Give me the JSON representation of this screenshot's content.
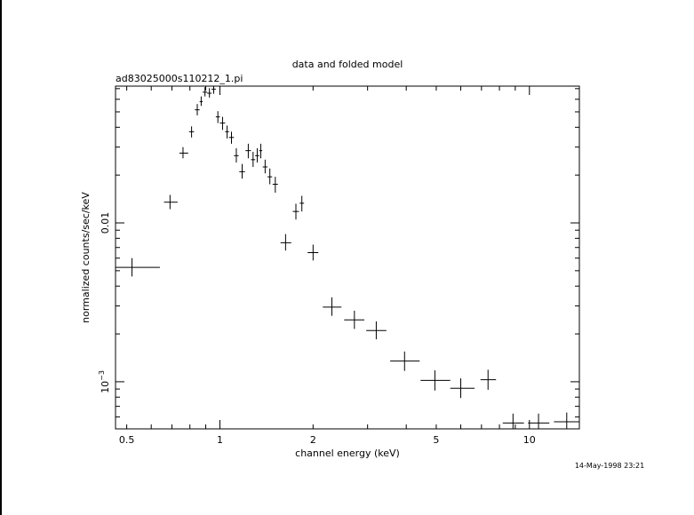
{
  "chart_data": {
    "type": "scatter",
    "title": "data and folded model",
    "subtitle": "ad83025000s110212_1.pi",
    "xlabel": "channel energy (keV)",
    "ylabel": "normalized counts/sec/keV",
    "timestamp": "14-May-1998 23:21",
    "x_scale": "log",
    "y_scale": "log",
    "xlim": [
      0.46,
      14.5
    ],
    "ylim": [
      0.000505,
      0.0726
    ],
    "grid": false,
    "x_ticks": [
      {
        "value": 0.5,
        "label": "0.5"
      },
      {
        "value": 1,
        "label": "1"
      },
      {
        "value": 2,
        "label": "2"
      },
      {
        "value": 5,
        "label": "5"
      },
      {
        "value": 10,
        "label": "10"
      }
    ],
    "y_ticks": [
      {
        "value": 0.01,
        "label": "0.01",
        "base": "",
        "exp": ""
      },
      {
        "value": 0.001,
        "label": "",
        "base": "10",
        "exp": "−3"
      }
    ],
    "points": [
      {
        "x": 0.52,
        "xerr": [
          0.46,
          0.64
        ],
        "y": 0.00525,
        "yerr": [
          0.0046,
          0.006
        ]
      },
      {
        "x": 0.69,
        "xerr": [
          0.66,
          0.73
        ],
        "y": 0.0135,
        "yerr": [
          0.0122,
          0.015
        ]
      },
      {
        "x": 0.76,
        "xerr": [
          0.74,
          0.79
        ],
        "y": 0.0275,
        "yerr": [
          0.0255,
          0.03
        ]
      },
      {
        "x": 0.81,
        "xerr": [
          0.795,
          0.825
        ],
        "y": 0.0375,
        "yerr": [
          0.0345,
          0.0405
        ]
      },
      {
        "x": 0.845,
        "xerr": [
          0.83,
          0.86
        ],
        "y": 0.0515,
        "yerr": [
          0.0475,
          0.056
        ]
      },
      {
        "x": 0.87,
        "xerr": [
          0.86,
          0.88
        ],
        "y": 0.058,
        "yerr": [
          0.0545,
          0.0625
        ]
      },
      {
        "x": 0.895,
        "xerr": [
          0.88,
          0.91
        ],
        "y": 0.0665,
        "yerr": [
          0.0625,
          0.0715
        ]
      },
      {
        "x": 0.925,
        "xerr": [
          0.91,
          0.94
        ],
        "y": 0.0655,
        "yerr": [
          0.0615,
          0.0705
        ]
      },
      {
        "x": 0.955,
        "xerr": [
          0.94,
          0.97
        ],
        "y": 0.0695,
        "yerr": [
          0.065,
          0.0726
        ]
      },
      {
        "x": 0.985,
        "xerr": [
          0.97,
          1.0
        ],
        "y": 0.0465,
        "yerr": [
          0.0425,
          0.0505
        ]
      },
      {
        "x": 1.02,
        "xerr": [
          1.0,
          1.04
        ],
        "y": 0.0425,
        "yerr": [
          0.0385,
          0.0465
        ]
      },
      {
        "x": 1.055,
        "xerr": [
          1.04,
          1.07
        ],
        "y": 0.0375,
        "yerr": [
          0.034,
          0.041
        ]
      },
      {
        "x": 1.09,
        "xerr": [
          1.07,
          1.11
        ],
        "y": 0.0345,
        "yerr": [
          0.0315,
          0.0375
        ]
      },
      {
        "x": 1.13,
        "xerr": [
          1.11,
          1.15
        ],
        "y": 0.0265,
        "yerr": [
          0.024,
          0.0295
        ]
      },
      {
        "x": 1.18,
        "xerr": [
          1.155,
          1.205
        ],
        "y": 0.021,
        "yerr": [
          0.019,
          0.0235
        ]
      },
      {
        "x": 1.235,
        "xerr": [
          1.21,
          1.26
        ],
        "y": 0.0285,
        "yerr": [
          0.0255,
          0.0315
        ]
      },
      {
        "x": 1.28,
        "xerr": [
          1.26,
          1.3
        ],
        "y": 0.025,
        "yerr": [
          0.0225,
          0.028
        ]
      },
      {
        "x": 1.32,
        "xerr": [
          1.3,
          1.34
        ],
        "y": 0.0265,
        "yerr": [
          0.024,
          0.0295
        ]
      },
      {
        "x": 1.355,
        "xerr": [
          1.34,
          1.37
        ],
        "y": 0.0285,
        "yerr": [
          0.0255,
          0.0315
        ]
      },
      {
        "x": 1.4,
        "xerr": [
          1.375,
          1.425
        ],
        "y": 0.0225,
        "yerr": [
          0.0205,
          0.025
        ]
      },
      {
        "x": 1.45,
        "xerr": [
          1.425,
          1.475
        ],
        "y": 0.0195,
        "yerr": [
          0.0175,
          0.022
        ]
      },
      {
        "x": 1.51,
        "xerr": [
          1.48,
          1.54
        ],
        "y": 0.0175,
        "yerr": [
          0.0155,
          0.0195
        ]
      },
      {
        "x": 1.63,
        "xerr": [
          1.57,
          1.7
        ],
        "y": 0.0075,
        "yerr": [
          0.0067,
          0.0085
        ]
      },
      {
        "x": 1.76,
        "xerr": [
          1.72,
          1.8
        ],
        "y": 0.0118,
        "yerr": [
          0.0105,
          0.0132
        ]
      },
      {
        "x": 1.84,
        "xerr": [
          1.81,
          1.87
        ],
        "y": 0.0133,
        "yerr": [
          0.0118,
          0.0148
        ]
      },
      {
        "x": 2.0,
        "xerr": [
          1.92,
          2.08
        ],
        "y": 0.0065,
        "yerr": [
          0.0058,
          0.0073
        ]
      },
      {
        "x": 2.3,
        "xerr": [
          2.15,
          2.47
        ],
        "y": 0.00295,
        "yerr": [
          0.0026,
          0.0034
        ]
      },
      {
        "x": 2.72,
        "xerr": [
          2.52,
          2.93
        ],
        "y": 0.00245,
        "yerr": [
          0.00215,
          0.0028
        ]
      },
      {
        "x": 3.2,
        "xerr": [
          2.97,
          3.45
        ],
        "y": 0.0021,
        "yerr": [
          0.00185,
          0.0024
        ]
      },
      {
        "x": 3.95,
        "xerr": [
          3.55,
          4.42
        ],
        "y": 0.00135,
        "yerr": [
          0.00117,
          0.00155
        ]
      },
      {
        "x": 4.95,
        "xerr": [
          4.45,
          5.55
        ],
        "y": 0.00102,
        "yerr": [
          0.00088,
          0.00118
        ]
      },
      {
        "x": 6.0,
        "xerr": [
          5.55,
          6.65
        ],
        "y": 0.00091,
        "yerr": [
          0.00079,
          0.00105
        ]
      },
      {
        "x": 7.35,
        "xerr": [
          6.95,
          7.8
        ],
        "y": 0.00103,
        "yerr": [
          0.00089,
          0.00119
        ]
      },
      {
        "x": 8.85,
        "xerr": [
          8.2,
          9.6
        ],
        "y": 0.00055,
        "yerr": [
          0.000505,
          0.00063
        ]
      },
      {
        "x": 10.7,
        "xerr": [
          9.9,
          11.6
        ],
        "y": 0.00055,
        "yerr": [
          0.000505,
          0.00063
        ]
      },
      {
        "x": 13.2,
        "xerr": [
          12.0,
          14.5
        ],
        "y": 0.00056,
        "yerr": [
          0.000505,
          0.00064
        ]
      }
    ]
  }
}
